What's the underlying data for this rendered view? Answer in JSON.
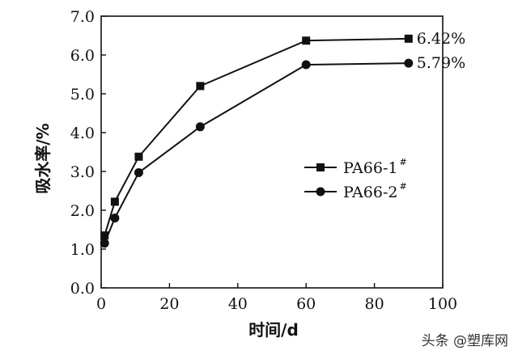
{
  "chart_data": {
    "type": "line",
    "xlabel": "时间/d",
    "ylabel": "吸水率/%",
    "xlim": [
      0,
      100
    ],
    "ylim": [
      0.0,
      7.0
    ],
    "x_ticks": [
      "0",
      "20",
      "40",
      "60",
      "80",
      "100"
    ],
    "y_ticks": [
      "0.0",
      "1.0",
      "2.0",
      "3.0",
      "4.0",
      "5.0",
      "6.0",
      "7.0"
    ],
    "legend_position": "right-center",
    "series": [
      {
        "name": "PA66-1",
        "name_sup": "#",
        "marker": "square",
        "x": [
          1,
          4,
          11,
          29,
          60,
          90
        ],
        "y": [
          1.35,
          2.22,
          3.38,
          5.2,
          6.37,
          6.42
        ],
        "end_label": "6.42%"
      },
      {
        "name": "PA66-2",
        "name_sup": "#",
        "marker": "circle",
        "x": [
          1,
          4,
          11,
          29,
          60,
          90
        ],
        "y": [
          1.15,
          1.8,
          2.97,
          4.15,
          5.75,
          5.79
        ],
        "end_label": "5.79%"
      }
    ]
  },
  "watermark": {
    "text": "头条 @塑库网"
  }
}
